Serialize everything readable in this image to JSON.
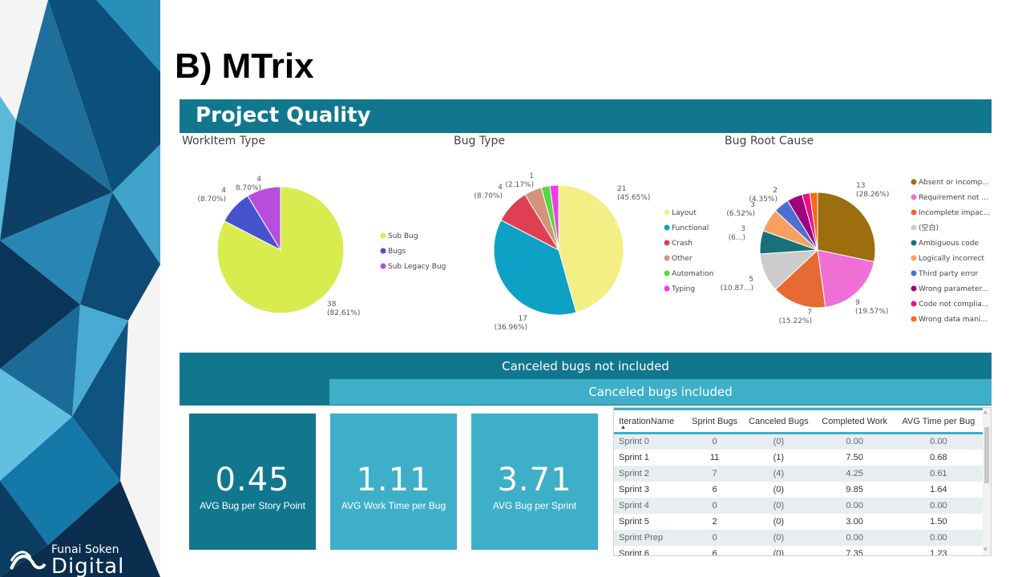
{
  "slide": {
    "title": "B) MTrix"
  },
  "logo": {
    "line1": "Funai Soken",
    "line2": "Digital"
  },
  "report": {
    "title": "Project Quality"
  },
  "colors": {
    "header": "#11778e",
    "accent": "#3eafc9"
  },
  "chart_data": [
    {
      "type": "pie",
      "title": "WorkItem Type",
      "categories": [
        "Sub Bug",
        "Bugs",
        "Sub Legacy Bug"
      ],
      "values": [
        38,
        4,
        4
      ],
      "percent_labels": [
        "(82.61%)",
        "(8.70%)",
        "8.70%)"
      ],
      "colors": [
        "#d9ec4f",
        "#4553cf",
        "#b84fdc"
      ],
      "legend": "right",
      "data_labels": [
        "38",
        "4",
        "4"
      ]
    },
    {
      "type": "pie",
      "title": "Bug Type",
      "categories": [
        "Layout",
        "Functional",
        "Crash",
        "Other",
        "Automation",
        "Typing"
      ],
      "values": [
        21,
        17,
        4,
        2,
        1,
        1
      ],
      "percent_labels": [
        "(45.65%)",
        "(36.96%)",
        "(8.70%)",
        "",
        "(2.17%)",
        ""
      ],
      "colors": [
        "#f3ef85",
        "#0ea1c6",
        "#df3f52",
        "#d4937b",
        "#57d83d",
        "#ef3ce8"
      ],
      "legend": "right",
      "data_labels": [
        "21",
        "17",
        "4",
        "",
        "1",
        ""
      ]
    },
    {
      "type": "pie",
      "title": "Bug Root Cause",
      "categories": [
        "Absent or incomp...",
        "Requirement not ...",
        "Incomplete impac...",
        "(空白)",
        "Ambiguous code",
        "Logically incorrect",
        "Third party error",
        "Wrong parameter...",
        "Code not complia...",
        "Wrong data mani..."
      ],
      "values": [
        13,
        9,
        7,
        5,
        3,
        3,
        2,
        2,
        1,
        1
      ],
      "percent_labels": [
        "(28.26%)",
        "(19.57%)",
        "(15.22%)",
        "(10.87...)",
        "(6...)",
        "(6.52%)",
        "(4.35%)",
        "",
        "",
        ""
      ],
      "colors": [
        "#9c6e0d",
        "#ef6fd6",
        "#e66a33",
        "#cccccc",
        "#19707a",
        "#f7a060",
        "#4e6fd1",
        "#a0007d",
        "#ec0f85",
        "#f76a18"
      ],
      "legend": "right",
      "data_labels": [
        "13",
        "9",
        "7",
        "5",
        "3",
        "3",
        "2",
        "",
        "",
        ""
      ]
    }
  ],
  "bands": {
    "not_included": "Canceled bugs not included",
    "included": "Canceled bugs included"
  },
  "kpis": [
    {
      "value": "0.45",
      "label": "AVG Bug per Story Point",
      "color": "#11778e"
    },
    {
      "value": "1.11",
      "label": "AVG Work Time per Bug",
      "color": "#3eafc9"
    },
    {
      "value": "3.71",
      "label": "AVG Bug per Sprint",
      "color": "#3eafc9"
    }
  ],
  "table": {
    "columns": [
      "IterationName",
      "Sprint Bugs",
      "Canceled Bugs",
      "Completed Work",
      "AVG Time per Bug"
    ],
    "rows": [
      [
        "Sprint 0",
        "0",
        "(0)",
        "0.00",
        "0.00"
      ],
      [
        "Sprint 1",
        "11",
        "(1)",
        "7.50",
        "0.68"
      ],
      [
        "Sprint 2",
        "7",
        "(4)",
        "4.25",
        "0.61"
      ],
      [
        "Sprint 3",
        "6",
        "(0)",
        "9.85",
        "1.64"
      ],
      [
        "Sprint 4",
        "0",
        "(0)",
        "0.00",
        "0.00"
      ],
      [
        "Sprint 5",
        "2",
        "(0)",
        "3.00",
        "1.50"
      ],
      [
        "Sprint Prep",
        "0",
        "(0)",
        "0.00",
        "0.00"
      ],
      [
        "Sprint 6",
        "6",
        "(0)",
        "7.35",
        "1.23"
      ]
    ]
  }
}
